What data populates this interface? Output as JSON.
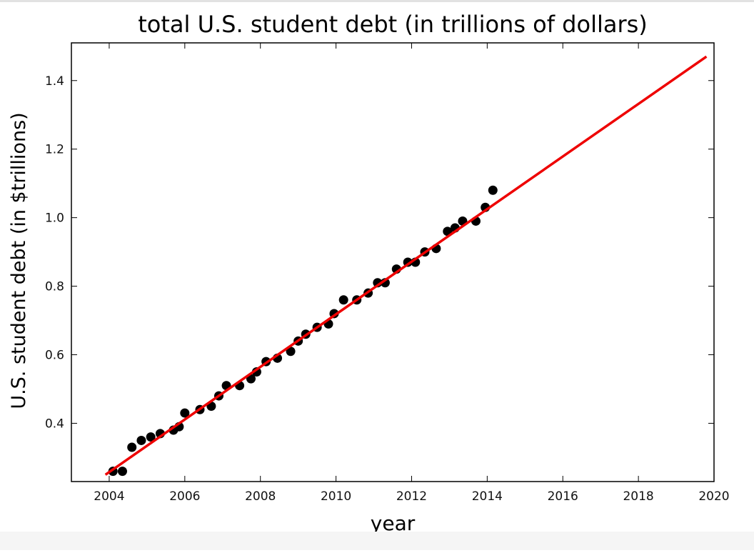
{
  "chart_data": {
    "type": "scatter",
    "title": "total U.S. student debt (in trillions of dollars)",
    "xlabel": "year",
    "ylabel": "U.S. student debt (in $trillions)",
    "xlim": [
      2003,
      2020
    ],
    "ylim": [
      0.23,
      1.51
    ],
    "x_ticks": [
      2004,
      2006,
      2008,
      2010,
      2012,
      2014,
      2016,
      2018,
      2020
    ],
    "y_ticks": [
      0.4,
      0.6,
      0.8,
      1.0,
      1.2,
      1.4
    ],
    "x_tick_labels": [
      "2004",
      "2006",
      "2008",
      "2010",
      "2012",
      "2014",
      "2016",
      "2018",
      "2020"
    ],
    "y_tick_labels": [
      "0.4",
      "0.6",
      "0.8",
      "1.0",
      "1.2",
      "1.4"
    ],
    "grid": false,
    "legend": "none",
    "colors": {
      "points": "#000000",
      "fit_line": "#ee0000",
      "axes": "#000000"
    },
    "series": [
      {
        "kind": "points",
        "x": [
          2004.1,
          2004.35,
          2004.6,
          2004.85,
          2005.1,
          2005.35,
          2005.7,
          2005.85,
          2006.0,
          2006.4,
          2006.7,
          2006.9,
          2007.1,
          2007.45,
          2007.75,
          2007.9,
          2008.15,
          2008.45,
          2008.8,
          2009.0,
          2009.2,
          2009.5,
          2009.8,
          2009.95,
          2010.2,
          2010.55,
          2010.85,
          2011.1,
          2011.3,
          2011.6,
          2011.9,
          2012.1,
          2012.35,
          2012.65,
          2012.95,
          2013.15,
          2013.35,
          2013.7,
          2013.95,
          2014.15
        ],
        "y": [
          0.26,
          0.26,
          0.33,
          0.35,
          0.36,
          0.37,
          0.38,
          0.39,
          0.43,
          0.44,
          0.45,
          0.48,
          0.51,
          0.51,
          0.53,
          0.55,
          0.58,
          0.59,
          0.61,
          0.64,
          0.66,
          0.68,
          0.69,
          0.72,
          0.76,
          0.76,
          0.78,
          0.81,
          0.81,
          0.85,
          0.87,
          0.87,
          0.9,
          0.91,
          0.96,
          0.97,
          0.99,
          0.99,
          1.03,
          1.08
        ]
      },
      {
        "kind": "line",
        "x": [
          2003.9,
          2019.8
        ],
        "y": [
          0.25,
          1.47
        ]
      }
    ]
  }
}
